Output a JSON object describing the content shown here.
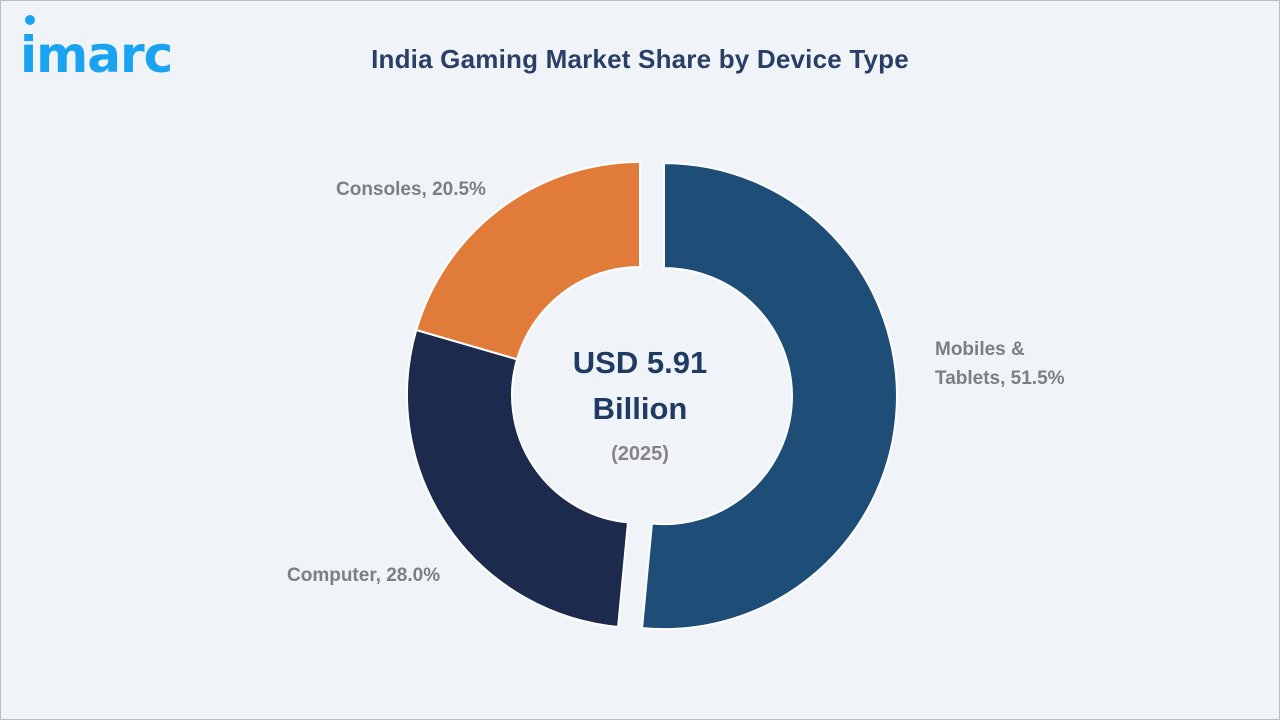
{
  "brand": {
    "logo_text": "imarc",
    "color": "#1aa3f0"
  },
  "header": {
    "title": "India Gaming Market Share by Device Type"
  },
  "center": {
    "value_line1": "USD 5.91",
    "value_line2": "Billion",
    "year": "(2025)"
  },
  "labels": {
    "mobiles_line1": "Mobiles &",
    "mobiles_line2": "Tablets, 51.5%",
    "computer": "Computer, 28.0%",
    "consoles": "Consoles, 20.5%"
  },
  "colors": {
    "mobiles": "#1e4d78",
    "computer": "#1b2a4d",
    "consoles": "#e07b39",
    "background": "#f0f4f9",
    "title": "#2a3f66",
    "label": "#7c7e83"
  },
  "chart_data": {
    "type": "pie",
    "variant": "donut",
    "title": "India Gaming Market Share by Device Type",
    "categories": [
      "Mobiles & Tablets",
      "Computer",
      "Consoles"
    ],
    "values": [
      51.5,
      28.0,
      20.5
    ],
    "unit": "%",
    "center_annotation": "USD 5.91 Billion (2025)",
    "total_value": 5.91,
    "total_unit": "USD Billion",
    "year": 2025,
    "exploded": [
      "Mobiles & Tablets"
    ],
    "start_angle": "12 o'clock, clockwise",
    "legend": "none (data labels outside slices)"
  }
}
